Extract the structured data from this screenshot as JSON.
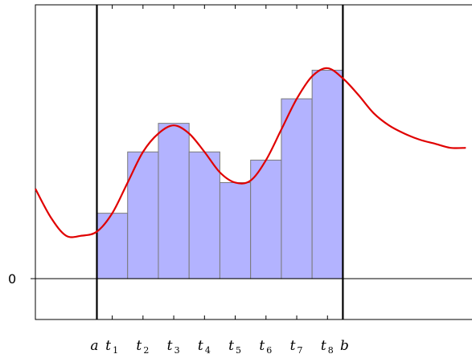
{
  "chart_data": {
    "type": "bar",
    "title": "",
    "xlabel": "",
    "ylabel": "",
    "y_tick_label": "0",
    "ylim": [
      -1.0,
      6.7
    ],
    "xlim": [
      -2.0,
      12.2
    ],
    "bound_labels": {
      "a": "a",
      "b": "b"
    },
    "sample_labels": [
      {
        "base": "t",
        "sub": "1"
      },
      {
        "base": "t",
        "sub": "2"
      },
      {
        "base": "t",
        "sub": "3"
      },
      {
        "base": "t",
        "sub": "4"
      },
      {
        "base": "t",
        "sub": "5"
      },
      {
        "base": "t",
        "sub": "6"
      },
      {
        "base": "t",
        "sub": "7"
      },
      {
        "base": "t",
        "sub": "8"
      }
    ],
    "interval": {
      "a": 0,
      "b": 8
    },
    "sample_points": [
      0.5,
      1.5,
      2.5,
      3.5,
      4.5,
      5.5,
      6.5,
      7.5
    ],
    "values": [
      1.6,
      3.1,
      3.8,
      3.1,
      2.35,
      2.9,
      4.4,
      5.1
    ],
    "curve": [
      [
        -2.0,
        2.2
      ],
      [
        -1.5,
        1.5
      ],
      [
        -1.0,
        1.05
      ],
      [
        -0.5,
        1.05
      ],
      [
        0.0,
        1.15
      ],
      [
        0.5,
        1.6
      ],
      [
        1.0,
        2.35
      ],
      [
        1.5,
        3.1
      ],
      [
        2.0,
        3.55
      ],
      [
        2.5,
        3.75
      ],
      [
        3.0,
        3.55
      ],
      [
        3.5,
        3.1
      ],
      [
        4.0,
        2.6
      ],
      [
        4.5,
        2.35
      ],
      [
        5.0,
        2.4
      ],
      [
        5.5,
        2.9
      ],
      [
        6.0,
        3.65
      ],
      [
        6.5,
        4.4
      ],
      [
        7.0,
        4.95
      ],
      [
        7.5,
        5.15
      ],
      [
        8.0,
        4.9
      ],
      [
        8.5,
        4.5
      ],
      [
        9.0,
        4.05
      ],
      [
        9.5,
        3.75
      ],
      [
        10.0,
        3.55
      ],
      [
        10.5,
        3.4
      ],
      [
        11.0,
        3.3
      ],
      [
        11.5,
        3.2
      ],
      [
        12.0,
        3.2
      ]
    ],
    "bar_fill": "#b3b3ff",
    "bar_stroke": "#7a7a7a",
    "curve_color": "#e00000",
    "grid": false,
    "legend": "none"
  }
}
